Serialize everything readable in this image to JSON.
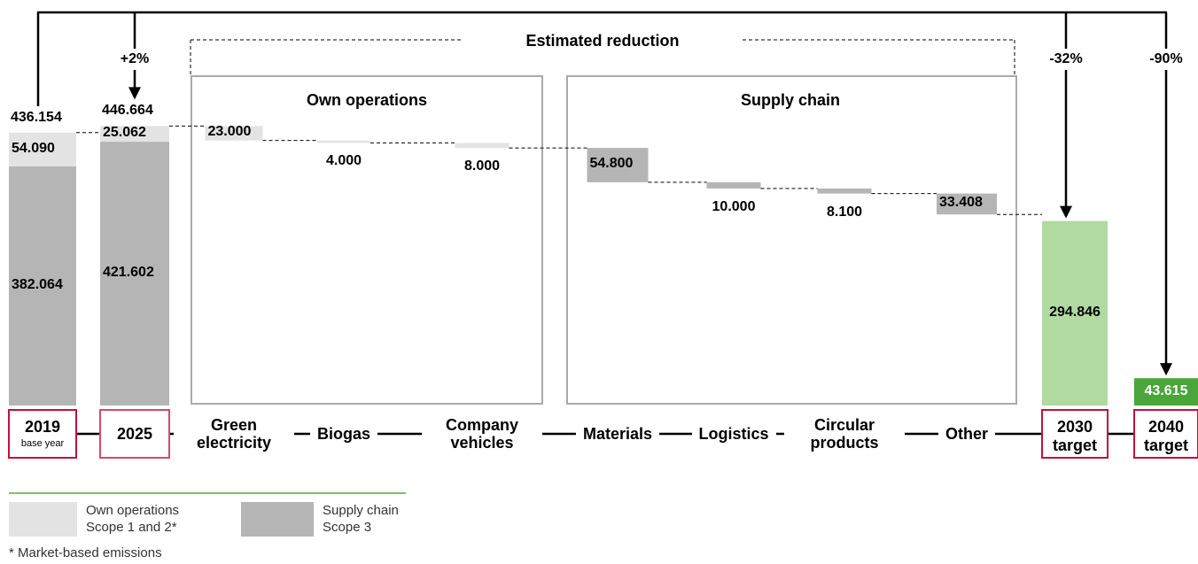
{
  "chart_data": {
    "type": "waterfall",
    "title": "Estimated reduction",
    "groups": [
      "Own operations",
      "Supply chain"
    ],
    "categories": [
      "2019",
      "2025",
      "Green electricity",
      "Biogas",
      "Company vehicles",
      "Materials",
      "Logistics",
      "Circular products",
      "Other",
      "2030",
      "2040"
    ],
    "category_sublabels": [
      "base year",
      null,
      null,
      null,
      null,
      null,
      null,
      null,
      null,
      "target",
      "target"
    ],
    "series": [
      {
        "name": "Own operations Scope 1 and 2*",
        "color": "#e3e3e3",
        "values": [
          54090,
          25062,
          23000,
          4000,
          8000,
          null,
          null,
          null,
          null,
          null,
          null
        ],
        "value_labels": [
          "54.090",
          "25.062",
          "23.000",
          "4.000",
          "8.000",
          null,
          null,
          null,
          null,
          null,
          null
        ]
      },
      {
        "name": "Supply chain Scope 3",
        "color": "#b5b5b5",
        "values": [
          382064,
          421602,
          null,
          null,
          null,
          54800,
          10000,
          8100,
          33408,
          null,
          null
        ],
        "value_labels": [
          "382.064",
          "421.602",
          null,
          null,
          null,
          "54.800",
          "10.000",
          "8.100",
          "33.408",
          null,
          null
        ]
      }
    ],
    "totals": {
      "values": [
        436154,
        446664,
        null,
        null,
        null,
        null,
        null,
        null,
        null,
        null,
        null
      ],
      "value_labels": [
        "436.154",
        "446.664",
        null,
        null,
        null,
        null,
        null,
        null,
        null,
        null,
        null
      ]
    },
    "targets": {
      "values": [
        null,
        null,
        null,
        null,
        null,
        null,
        null,
        null,
        null,
        294846,
        43615
      ],
      "value_labels": [
        null,
        null,
        null,
        null,
        null,
        null,
        null,
        null,
        null,
        "294.846",
        "43.615"
      ],
      "colors": [
        null,
        null,
        null,
        null,
        null,
        null,
        null,
        null,
        null,
        "#b1d9a2",
        "#4aa63a"
      ]
    },
    "changes": {
      "values": [
        null,
        2,
        null,
        null,
        null,
        null,
        null,
        null,
        null,
        -32,
        -90
      ],
      "value_labels": [
        null,
        "+2%",
        null,
        null,
        null,
        null,
        null,
        null,
        null,
        "-32%",
        "-90%"
      ]
    },
    "ylim": [
      0,
      450000
    ],
    "footnote": "* Market-based emissions"
  }
}
